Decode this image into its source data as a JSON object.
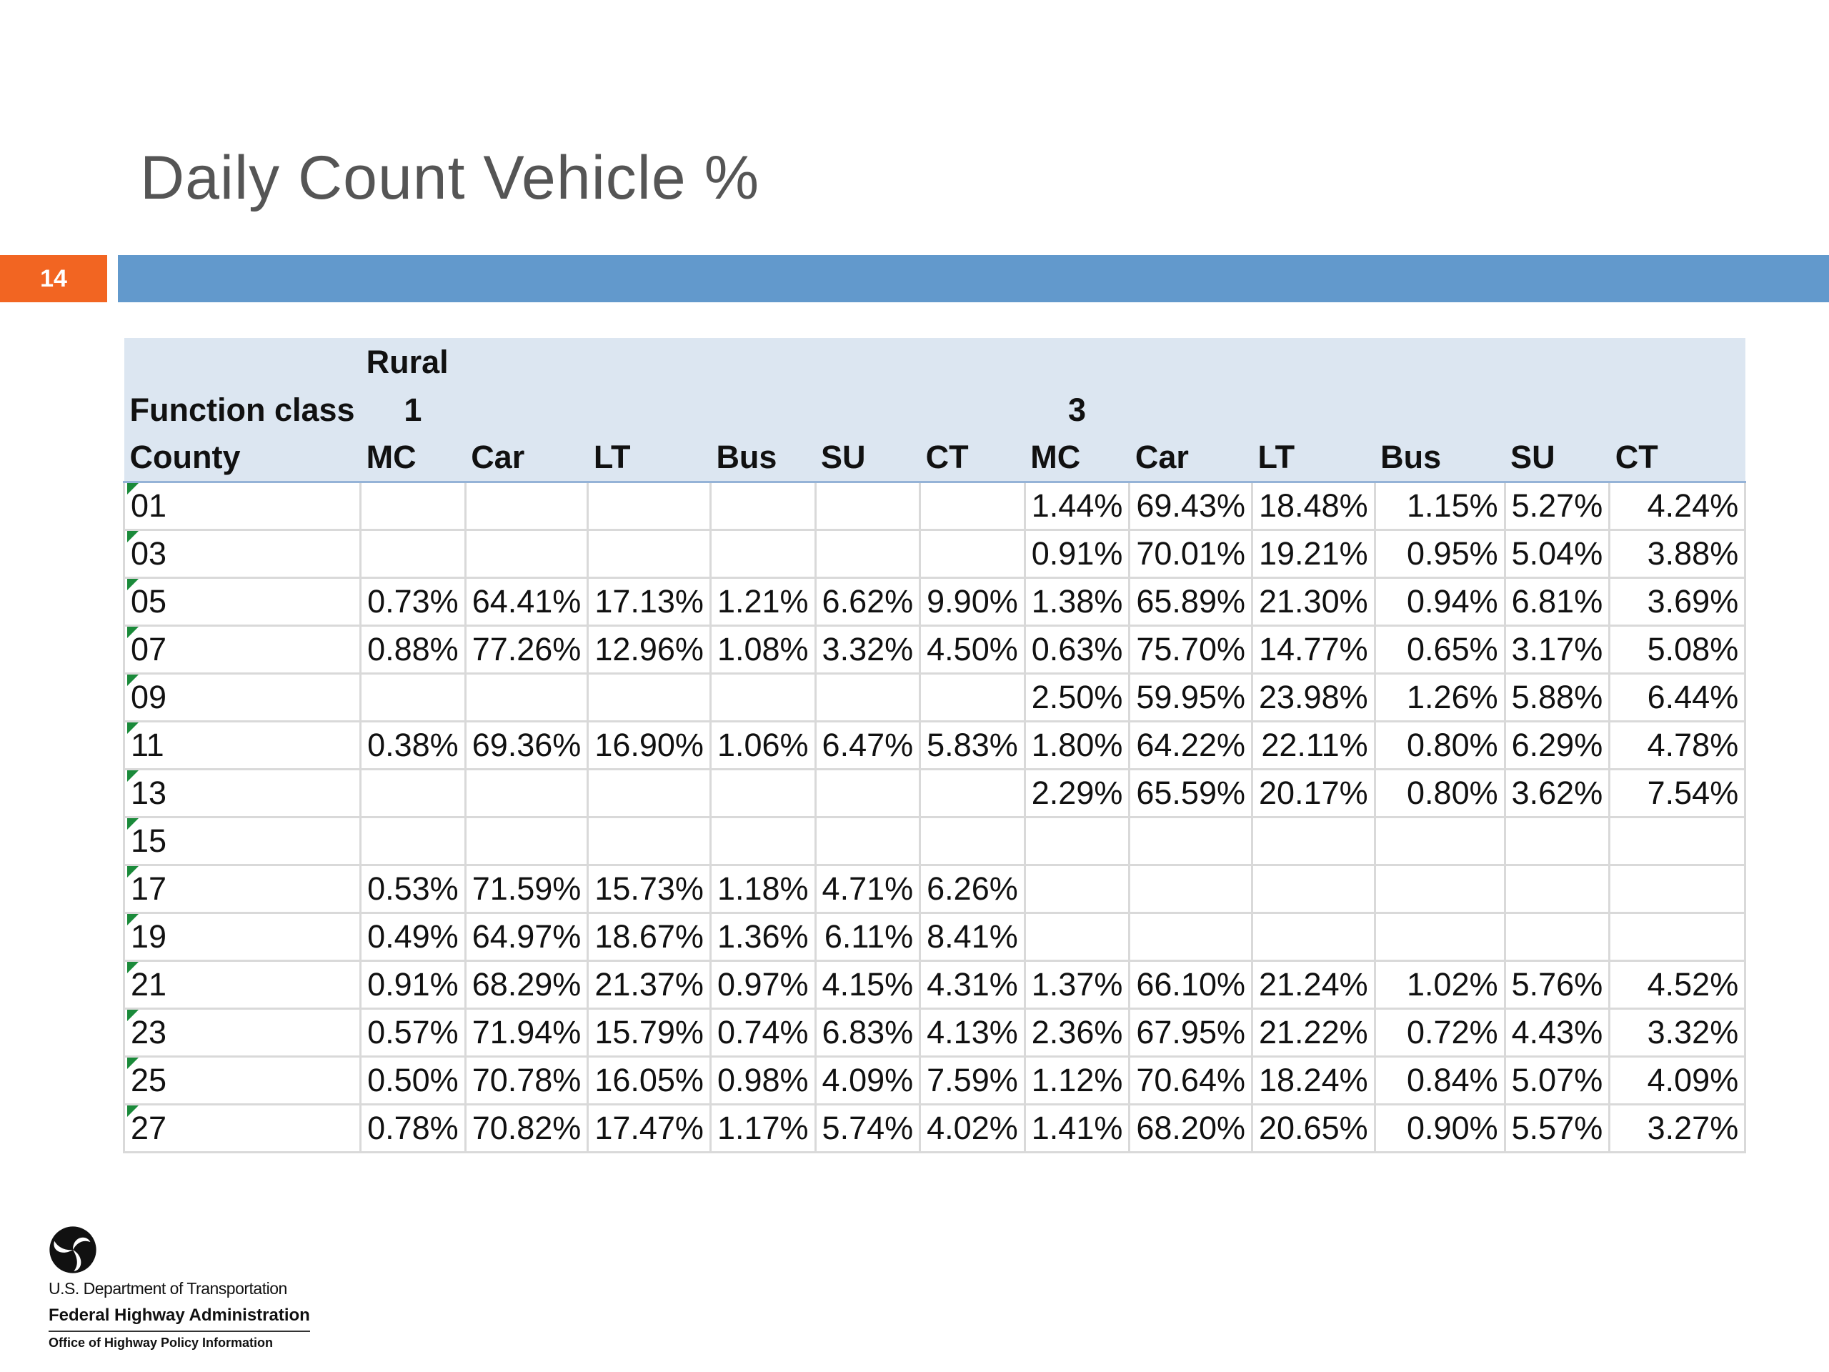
{
  "slide": {
    "title": "Daily Count Vehicle %",
    "number": "14"
  },
  "footer": {
    "line1": "U.S. Department of Transportation",
    "line2": "Federal Highway Administration",
    "line3": "Office of Highway Policy Information"
  },
  "chart_data": {
    "type": "table",
    "title": "Daily Count Vehicle %",
    "header_rows": [
      [
        "",
        "Rural",
        "",
        "",
        "",
        "",
        "",
        "",
        "",
        "",
        "",
        "",
        ""
      ],
      [
        "Function class",
        "1",
        "",
        "",
        "",
        "",
        "",
        "3",
        "",
        "",
        "",
        "",
        ""
      ],
      [
        "County",
        "MC",
        "Car",
        "LT",
        "Bus",
        "SU",
        "CT",
        "MC",
        "Car",
        "LT",
        "Bus",
        "SU",
        "CT"
      ]
    ],
    "rows": [
      [
        "01",
        "",
        "",
        "",
        "",
        "",
        "",
        "1.44%",
        "69.43%",
        "18.48%",
        "1.15%",
        "5.27%",
        "4.24%"
      ],
      [
        "03",
        "",
        "",
        "",
        "",
        "",
        "",
        "0.91%",
        "70.01%",
        "19.21%",
        "0.95%",
        "5.04%",
        "3.88%"
      ],
      [
        "05",
        "0.73%",
        "64.41%",
        "17.13%",
        "1.21%",
        "6.62%",
        "9.90%",
        "1.38%",
        "65.89%",
        "21.30%",
        "0.94%",
        "6.81%",
        "3.69%"
      ],
      [
        "07",
        "0.88%",
        "77.26%",
        "12.96%",
        "1.08%",
        "3.32%",
        "4.50%",
        "0.63%",
        "75.70%",
        "14.77%",
        "0.65%",
        "3.17%",
        "5.08%"
      ],
      [
        "09",
        "",
        "",
        "",
        "",
        "",
        "",
        "2.50%",
        "59.95%",
        "23.98%",
        "1.26%",
        "5.88%",
        "6.44%"
      ],
      [
        "11",
        "0.38%",
        "69.36%",
        "16.90%",
        "1.06%",
        "6.47%",
        "5.83%",
        "1.80%",
        "64.22%",
        "22.11%",
        "0.80%",
        "6.29%",
        "4.78%"
      ],
      [
        "13",
        "",
        "",
        "",
        "",
        "",
        "",
        "2.29%",
        "65.59%",
        "20.17%",
        "0.80%",
        "3.62%",
        "7.54%"
      ],
      [
        "15",
        "",
        "",
        "",
        "",
        "",
        "",
        "",
        "",
        "",
        "",
        "",
        ""
      ],
      [
        "17",
        "0.53%",
        "71.59%",
        "15.73%",
        "1.18%",
        "4.71%",
        "6.26%",
        "",
        "",
        "",
        "",
        "",
        ""
      ],
      [
        "19",
        "0.49%",
        "64.97%",
        "18.67%",
        "1.36%",
        "6.11%",
        "8.41%",
        "",
        "",
        "",
        "",
        "",
        ""
      ],
      [
        "21",
        "0.91%",
        "68.29%",
        "21.37%",
        "0.97%",
        "4.15%",
        "4.31%",
        "1.37%",
        "66.10%",
        "21.24%",
        "1.02%",
        "5.76%",
        "4.52%"
      ],
      [
        "23",
        "0.57%",
        "71.94%",
        "15.79%",
        "0.74%",
        "6.83%",
        "4.13%",
        "2.36%",
        "67.95%",
        "21.22%",
        "0.72%",
        "4.43%",
        "3.32%"
      ],
      [
        "25",
        "0.50%",
        "70.78%",
        "16.05%",
        "0.98%",
        "4.09%",
        "7.59%",
        "1.12%",
        "70.64%",
        "18.24%",
        "0.84%",
        "5.07%",
        "4.09%"
      ],
      [
        "27",
        "0.78%",
        "70.82%",
        "17.47%",
        "1.17%",
        "5.74%",
        "4.02%",
        "1.41%",
        "68.20%",
        "20.65%",
        "0.90%",
        "5.57%",
        "3.27%"
      ]
    ],
    "colors": {
      "header_bg": "#dce6f1",
      "grid": "#d9d9d9",
      "flag": "#1a8a3a"
    }
  }
}
